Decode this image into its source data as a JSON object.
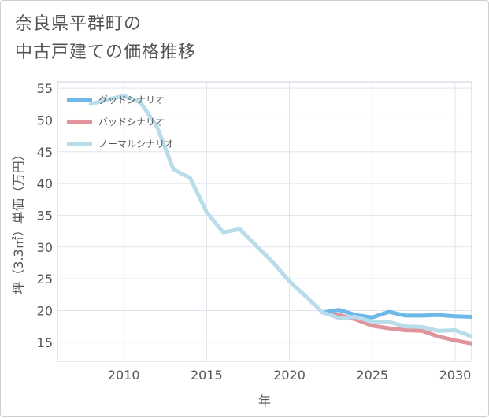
{
  "page": {
    "title_line1": "奈良県平群町の",
    "title_line2": "中古戸建ての価格推移"
  },
  "chart_data": {
    "type": "line",
    "xlabel": "年",
    "ylabel": "坪（3.3㎡）単価（万円）",
    "xlim": [
      2006,
      2031
    ],
    "ylim": [
      12,
      56
    ],
    "xticks": [
      2010,
      2015,
      2020,
      2025,
      2030
    ],
    "yticks": [
      15,
      20,
      25,
      30,
      35,
      40,
      45,
      50,
      55
    ],
    "legend_position": "top-left",
    "series": [
      {
        "name": "グッドシナリオ",
        "color": "#6cb8e8",
        "x": [
          2022,
          2023,
          2024,
          2025,
          2026,
          2027,
          2028,
          2029,
          2030,
          2031
        ],
        "y": [
          19.7,
          20.1,
          19.3,
          18.9,
          19.8,
          19.2,
          19.2,
          19.3,
          19.1,
          19.0
        ]
      },
      {
        "name": "バッドシナリオ",
        "color": "#e0949c",
        "x": [
          2022,
          2023,
          2024,
          2025,
          2026,
          2027,
          2028,
          2029,
          2030,
          2031
        ],
        "y": [
          19.7,
          19.3,
          18.6,
          17.6,
          17.2,
          16.9,
          16.8,
          15.9,
          15.3,
          14.8
        ]
      },
      {
        "name": "ノーマルシナリオ",
        "color": "#b8dcea",
        "x": [
          2008,
          2009,
          2010,
          2011,
          2012,
          2013,
          2014,
          2015,
          2016,
          2017,
          2018,
          2019,
          2020,
          2021,
          2022,
          2023,
          2024,
          2025,
          2026,
          2027,
          2028,
          2029,
          2030,
          2031
        ],
        "y": [
          52.5,
          53.2,
          53.8,
          52.8,
          49.0,
          42.2,
          40.9,
          35.5,
          32.3,
          32.8,
          30.2,
          27.6,
          24.6,
          22.2,
          19.7,
          18.8,
          19.0,
          18.2,
          18.2,
          17.5,
          17.4,
          16.8,
          16.9,
          15.9
        ]
      }
    ]
  }
}
